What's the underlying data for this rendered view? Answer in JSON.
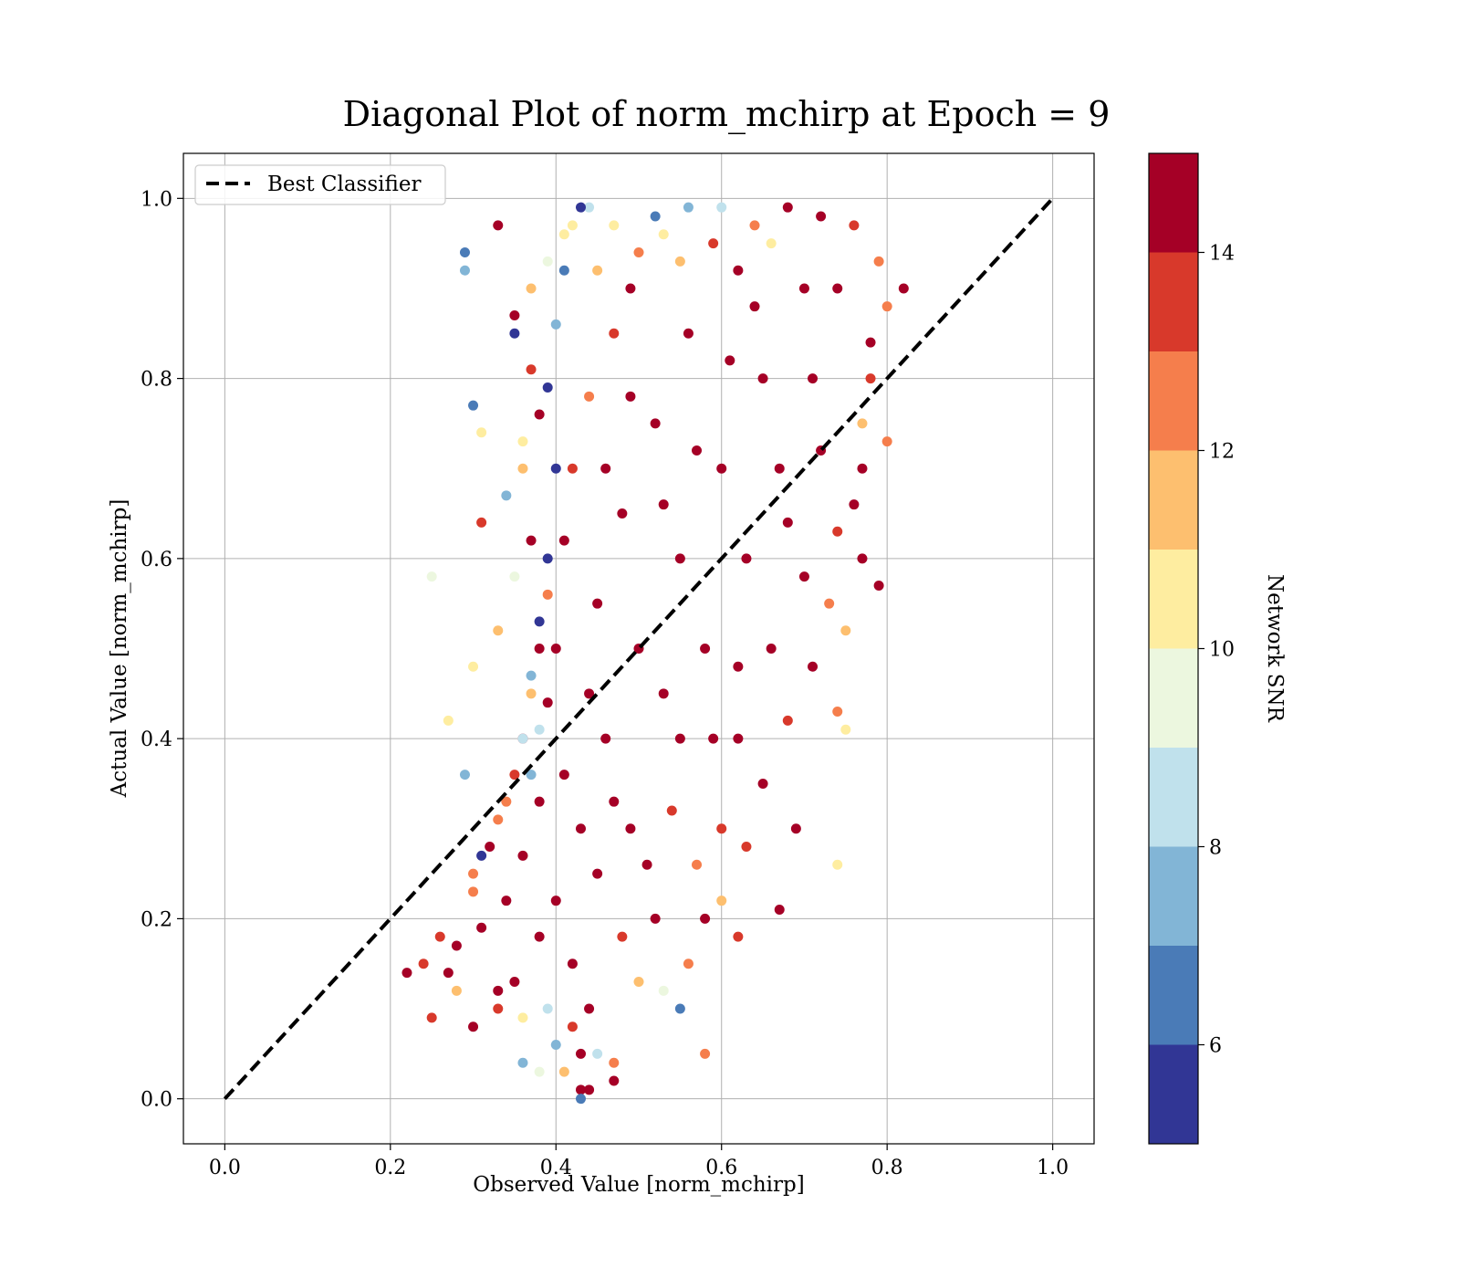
{
  "chart_data": {
    "type": "scatter",
    "title": "Diagonal Plot of norm_mchirp at Epoch = 9",
    "xlabel": "Observed Value [norm_mchirp]",
    "ylabel": "Actual Value [norm_mchirp]",
    "xlim": [
      -0.05,
      1.05
    ],
    "ylim": [
      -0.05,
      1.05
    ],
    "xticks": [
      "0.0",
      "0.2",
      "0.4",
      "0.6",
      "0.8",
      "1.0"
    ],
    "yticks": [
      "0.0",
      "0.2",
      "0.4",
      "0.6",
      "0.8",
      "1.0"
    ],
    "grid": true,
    "legend": {
      "position": "upper-left",
      "entries": [
        "Best Classifier"
      ]
    },
    "reference_line": {
      "name": "Best Classifier",
      "style": "dashed",
      "color": "#000000",
      "x": [
        0,
        1
      ],
      "y": [
        0,
        1
      ]
    },
    "colorbar": {
      "label": "Network SNR",
      "range": [
        5,
        15
      ],
      "ticks": [
        "6",
        "8",
        "10",
        "12",
        "14"
      ],
      "bins": [
        {
          "from": 5,
          "to": 6,
          "color": "#313695"
        },
        {
          "from": 6,
          "to": 7,
          "color": "#4a7bb7"
        },
        {
          "from": 7,
          "to": 8,
          "color": "#82b5d6"
        },
        {
          "from": 8,
          "to": 9,
          "color": "#c0e1ec"
        },
        {
          "from": 9,
          "to": 10,
          "color": "#ecf7df"
        },
        {
          "from": 10,
          "to": 11,
          "color": "#feeda0"
        },
        {
          "from": 11,
          "to": 12,
          "color": "#fdbf6f"
        },
        {
          "from": 12,
          "to": 13,
          "color": "#f57e4c"
        },
        {
          "from": 13,
          "to": 14,
          "color": "#d8392b"
        },
        {
          "from": 14,
          "to": 15,
          "color": "#a50026"
        }
      ]
    },
    "series": [
      {
        "color_by": "Network SNR",
        "points": [
          [
            0.43,
            0.01,
            15
          ],
          [
            0.44,
            0.01,
            15
          ],
          [
            0.43,
            0.05,
            15
          ],
          [
            0.42,
            0.08,
            14
          ],
          [
            0.44,
            0.1,
            15
          ],
          [
            0.22,
            0.14,
            15
          ],
          [
            0.25,
            0.09,
            14
          ],
          [
            0.26,
            0.18,
            14
          ],
          [
            0.3,
            0.23,
            13
          ],
          [
            0.32,
            0.28,
            15
          ],
          [
            0.34,
            0.33,
            13
          ],
          [
            0.36,
            0.4,
            15
          ],
          [
            0.37,
            0.45,
            12
          ],
          [
            0.38,
            0.5,
            15
          ],
          [
            0.39,
            0.56,
            13
          ],
          [
            0.37,
            0.62,
            15
          ],
          [
            0.36,
            0.7,
            12
          ],
          [
            0.38,
            0.76,
            15
          ],
          [
            0.37,
            0.81,
            14
          ],
          [
            0.35,
            0.87,
            15
          ],
          [
            0.33,
            0.97,
            15
          ],
          [
            0.31,
            0.64,
            14
          ],
          [
            0.3,
            0.48,
            11
          ],
          [
            0.29,
            0.36,
            8
          ],
          [
            0.27,
            0.42,
            11
          ],
          [
            0.25,
            0.58,
            10
          ],
          [
            0.3,
            0.77,
            7
          ],
          [
            0.29,
            0.94,
            7
          ],
          [
            0.29,
            0.92,
            8
          ],
          [
            0.31,
            0.74,
            11
          ],
          [
            0.74,
            0.26,
            11
          ],
          [
            0.75,
            0.41,
            11
          ],
          [
            0.74,
            0.43,
            13
          ],
          [
            0.69,
            0.3,
            15
          ],
          [
            0.67,
            0.21,
            15
          ],
          [
            0.62,
            0.18,
            14
          ],
          [
            0.58,
            0.2,
            15
          ],
          [
            0.55,
            0.1,
            7
          ],
          [
            0.58,
            0.05,
            13
          ],
          [
            0.47,
            0.04,
            13
          ],
          [
            0.47,
            0.02,
            15
          ],
          [
            0.43,
            0.0,
            7
          ],
          [
            0.4,
            0.06,
            8
          ],
          [
            0.36,
            0.09,
            11
          ],
          [
            0.33,
            0.12,
            15
          ],
          [
            0.28,
            0.12,
            12
          ],
          [
            0.24,
            0.15,
            14
          ],
          [
            0.6,
            0.3,
            14
          ],
          [
            0.62,
            0.4,
            15
          ],
          [
            0.66,
            0.5,
            15
          ],
          [
            0.7,
            0.58,
            15
          ],
          [
            0.74,
            0.63,
            14
          ],
          [
            0.77,
            0.7,
            15
          ],
          [
            0.78,
            0.8,
            14
          ],
          [
            0.8,
            0.88,
            13
          ],
          [
            0.82,
            0.9,
            15
          ],
          [
            0.8,
            0.73,
            13
          ],
          [
            0.79,
            0.57,
            15
          ],
          [
            0.77,
            0.6,
            15
          ],
          [
            0.75,
            0.52,
            12
          ],
          [
            0.72,
            0.98,
            15
          ],
          [
            0.68,
            0.99,
            15
          ],
          [
            0.64,
            0.97,
            13
          ],
          [
            0.6,
            0.99,
            9
          ],
          [
            0.56,
            0.99,
            8
          ],
          [
            0.52,
            0.98,
            7
          ],
          [
            0.47,
            0.97,
            11
          ],
          [
            0.44,
            0.99,
            9
          ],
          [
            0.43,
            0.99,
            5
          ],
          [
            0.42,
            0.97,
            11
          ],
          [
            0.41,
            0.92,
            7
          ],
          [
            0.4,
            0.86,
            8
          ],
          [
            0.39,
            0.79,
            6
          ],
          [
            0.4,
            0.7,
            5
          ],
          [
            0.39,
            0.6,
            6
          ],
          [
            0.38,
            0.53,
            5
          ],
          [
            0.37,
            0.47,
            8
          ],
          [
            0.36,
            0.4,
            9
          ],
          [
            0.35,
            0.36,
            14
          ],
          [
            0.33,
            0.31,
            13
          ],
          [
            0.31,
            0.27,
            6
          ],
          [
            0.3,
            0.25,
            13
          ],
          [
            0.33,
            0.52,
            12
          ],
          [
            0.35,
            0.58,
            10
          ],
          [
            0.34,
            0.67,
            8
          ],
          [
            0.36,
            0.73,
            11
          ],
          [
            0.35,
            0.85,
            6
          ],
          [
            0.37,
            0.9,
            12
          ],
          [
            0.39,
            0.93,
            10
          ],
          [
            0.41,
            0.96,
            11
          ],
          [
            0.38,
            0.41,
            9
          ],
          [
            0.37,
            0.36,
            8
          ],
          [
            0.39,
            0.1,
            9
          ],
          [
            0.36,
            0.04,
            8
          ],
          [
            0.38,
            0.03,
            10
          ],
          [
            0.41,
            0.03,
            12
          ],
          [
            0.45,
            0.05,
            9
          ],
          [
            0.5,
            0.13,
            12
          ],
          [
            0.53,
            0.12,
            10
          ],
          [
            0.56,
            0.15,
            13
          ],
          [
            0.52,
            0.2,
            15
          ],
          [
            0.49,
            0.3,
            15
          ],
          [
            0.46,
            0.4,
            15
          ],
          [
            0.5,
            0.5,
            15
          ],
          [
            0.55,
            0.6,
            15
          ],
          [
            0.6,
            0.7,
            15
          ],
          [
            0.65,
            0.8,
            15
          ],
          [
            0.7,
            0.9,
            15
          ],
          [
            0.45,
            0.55,
            15
          ],
          [
            0.48,
            0.65,
            15
          ],
          [
            0.52,
            0.75,
            15
          ],
          [
            0.56,
            0.85,
            15
          ],
          [
            0.45,
            0.25,
            15
          ],
          [
            0.42,
            0.15,
            15
          ],
          [
            0.55,
            0.4,
            15
          ],
          [
            0.58,
            0.5,
            15
          ],
          [
            0.63,
            0.6,
            15
          ],
          [
            0.67,
            0.7,
            15
          ],
          [
            0.71,
            0.8,
            15
          ],
          [
            0.74,
            0.9,
            15
          ],
          [
            0.47,
            0.85,
            14
          ],
          [
            0.45,
            0.92,
            12
          ],
          [
            0.5,
            0.94,
            13
          ],
          [
            0.55,
            0.93,
            12
          ],
          [
            0.59,
            0.95,
            14
          ],
          [
            0.62,
            0.92,
            15
          ],
          [
            0.44,
            0.78,
            13
          ],
          [
            0.42,
            0.7,
            14
          ],
          [
            0.41,
            0.62,
            15
          ],
          [
            0.4,
            0.5,
            15
          ],
          [
            0.39,
            0.44,
            15
          ],
          [
            0.38,
            0.33,
            15
          ],
          [
            0.36,
            0.27,
            15
          ],
          [
            0.34,
            0.22,
            15
          ],
          [
            0.31,
            0.19,
            15
          ],
          [
            0.28,
            0.17,
            15
          ],
          [
            0.27,
            0.14,
            15
          ],
          [
            0.3,
            0.08,
            15
          ],
          [
            0.33,
            0.1,
            14
          ],
          [
            0.35,
            0.13,
            15
          ],
          [
            0.38,
            0.18,
            15
          ],
          [
            0.4,
            0.22,
            15
          ],
          [
            0.48,
            0.18,
            14
          ],
          [
            0.51,
            0.26,
            15
          ],
          [
            0.54,
            0.32,
            14
          ],
          [
            0.57,
            0.26,
            13
          ],
          [
            0.6,
            0.22,
            12
          ],
          [
            0.63,
            0.28,
            14
          ],
          [
            0.65,
            0.35,
            15
          ],
          [
            0.68,
            0.42,
            14
          ],
          [
            0.71,
            0.48,
            15
          ],
          [
            0.73,
            0.55,
            13
          ],
          [
            0.76,
            0.66,
            15
          ],
          [
            0.77,
            0.75,
            12
          ],
          [
            0.78,
            0.84,
            15
          ],
          [
            0.79,
            0.93,
            13
          ],
          [
            0.76,
            0.97,
            14
          ],
          [
            0.66,
            0.95,
            11
          ],
          [
            0.53,
            0.96,
            11
          ],
          [
            0.49,
            0.9,
            15
          ],
          [
            0.46,
            0.7,
            15
          ],
          [
            0.49,
            0.78,
            15
          ],
          [
            0.53,
            0.66,
            15
          ],
          [
            0.57,
            0.72,
            15
          ],
          [
            0.61,
            0.82,
            15
          ],
          [
            0.64,
            0.88,
            15
          ],
          [
            0.68,
            0.64,
            15
          ],
          [
            0.72,
            0.72,
            15
          ],
          [
            0.59,
            0.4,
            15
          ],
          [
            0.62,
            0.48,
            15
          ],
          [
            0.53,
            0.45,
            15
          ],
          [
            0.47,
            0.33,
            15
          ],
          [
            0.43,
            0.3,
            15
          ],
          [
            0.41,
            0.36,
            15
          ],
          [
            0.44,
            0.45,
            15
          ]
        ]
      }
    ]
  }
}
